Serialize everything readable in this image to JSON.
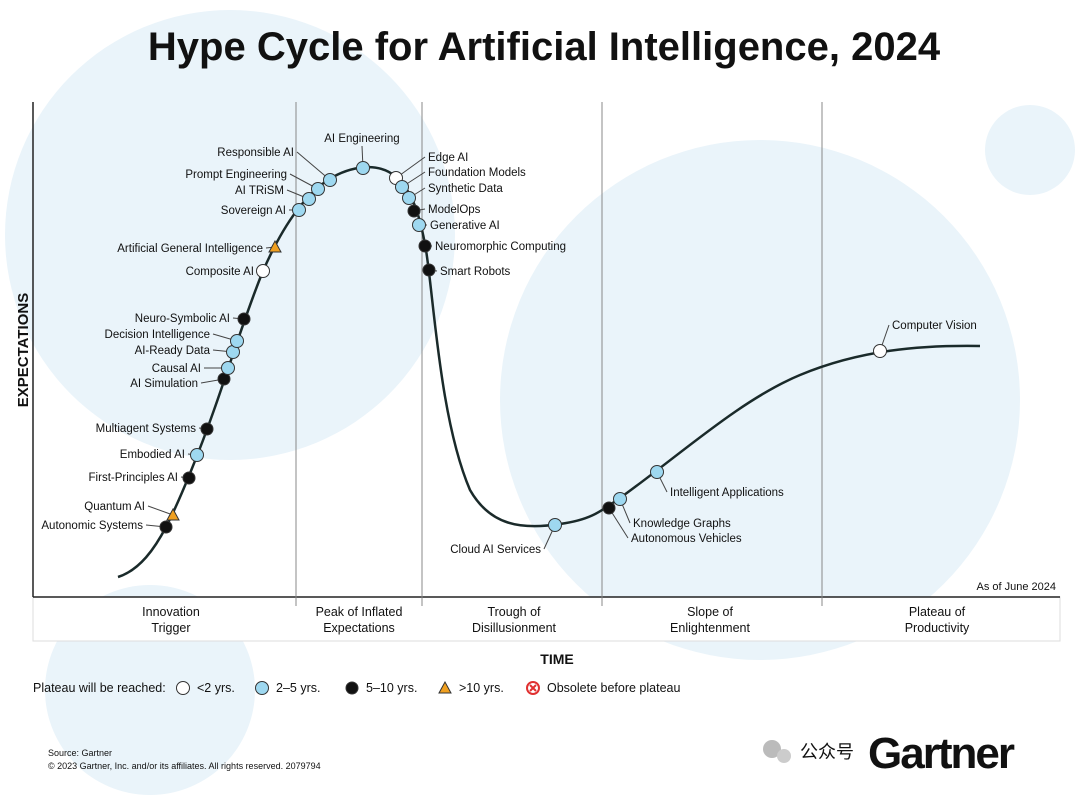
{
  "title": "Hype Cycle for Artificial Intelligence, 2024",
  "y_axis_label": "EXPECTATIONS",
  "x_axis_label": "TIME",
  "as_of": "As of June 2024",
  "phases": [
    {
      "line1": "Innovation",
      "line2": "Trigger"
    },
    {
      "line1": "Peak of Inflated",
      "line2": "Expectations"
    },
    {
      "line1": "Trough of",
      "line2": "Disillusionment"
    },
    {
      "line1": "Slope of",
      "line2": "Enlightenment"
    },
    {
      "line1": "Plateau of",
      "line2": "Productivity"
    }
  ],
  "legend": {
    "title": "Plateau will be reached:",
    "items": [
      {
        "label": "<2 yrs.",
        "key": "lt2"
      },
      {
        "label": "2–5 yrs.",
        "key": "2to5"
      },
      {
        "label": "5–10 yrs.",
        "key": "5to10"
      },
      {
        "label": ">10 yrs.",
        "key": "gt10"
      },
      {
        "label": "Obsolete before plateau",
        "key": "obsolete"
      }
    ]
  },
  "colors": {
    "lt2": "#ffffff",
    "2to5": "#9ed8f0",
    "5to10": "#111111",
    "gt10": "#f0a020",
    "obsolete": "#e03030",
    "watermark": "#eaf4fa"
  },
  "technologies": [
    {
      "label": "Autonomic Systems",
      "key": "5to10"
    },
    {
      "label": "Quantum AI",
      "key": "gt10"
    },
    {
      "label": "First-Principles AI",
      "key": "5to10"
    },
    {
      "label": "Embodied AI",
      "key": "2to5"
    },
    {
      "label": "Multiagent Systems",
      "key": "5to10"
    },
    {
      "label": "AI Simulation",
      "key": "5to10"
    },
    {
      "label": "Causal AI",
      "key": "2to5"
    },
    {
      "label": "AI-Ready Data",
      "key": "2to5"
    },
    {
      "label": "Decision Intelligence",
      "key": "2to5"
    },
    {
      "label": "Neuro-Symbolic AI",
      "key": "5to10"
    },
    {
      "label": "Composite AI",
      "key": "lt2"
    },
    {
      "label": "Artificial General Intelligence",
      "key": "gt10"
    },
    {
      "label": "Sovereign AI",
      "key": "2to5"
    },
    {
      "label": "AI TRiSM",
      "key": "2to5"
    },
    {
      "label": "Prompt Engineering",
      "key": "2to5"
    },
    {
      "label": "Responsible AI",
      "key": "2to5"
    },
    {
      "label": "AI Engineering",
      "key": "2to5"
    },
    {
      "label": "Edge AI",
      "key": "lt2"
    },
    {
      "label": "Foundation Models",
      "key": "2to5"
    },
    {
      "label": "Synthetic Data",
      "key": "2to5"
    },
    {
      "label": "ModelOps",
      "key": "5to10"
    },
    {
      "label": "Generative AI",
      "key": "2to5"
    },
    {
      "label": "Neuromorphic Computing",
      "key": "5to10"
    },
    {
      "label": "Smart Robots",
      "key": "5to10"
    },
    {
      "label": "Cloud AI Services",
      "key": "2to5"
    },
    {
      "label": "Autonomous Vehicles",
      "key": "5to10"
    },
    {
      "label": "Knowledge Graphs",
      "key": "2to5"
    },
    {
      "label": "Intelligent Applications",
      "key": "2to5"
    },
    {
      "label": "Computer Vision",
      "key": "lt2"
    }
  ],
  "footer": {
    "source": "Source: Gartner",
    "copyright": "© 2023 Gartner, Inc. and/or its affiliates. All rights reserved. 2079794",
    "logo": "Gartner",
    "watermark_text": "公众号"
  }
}
